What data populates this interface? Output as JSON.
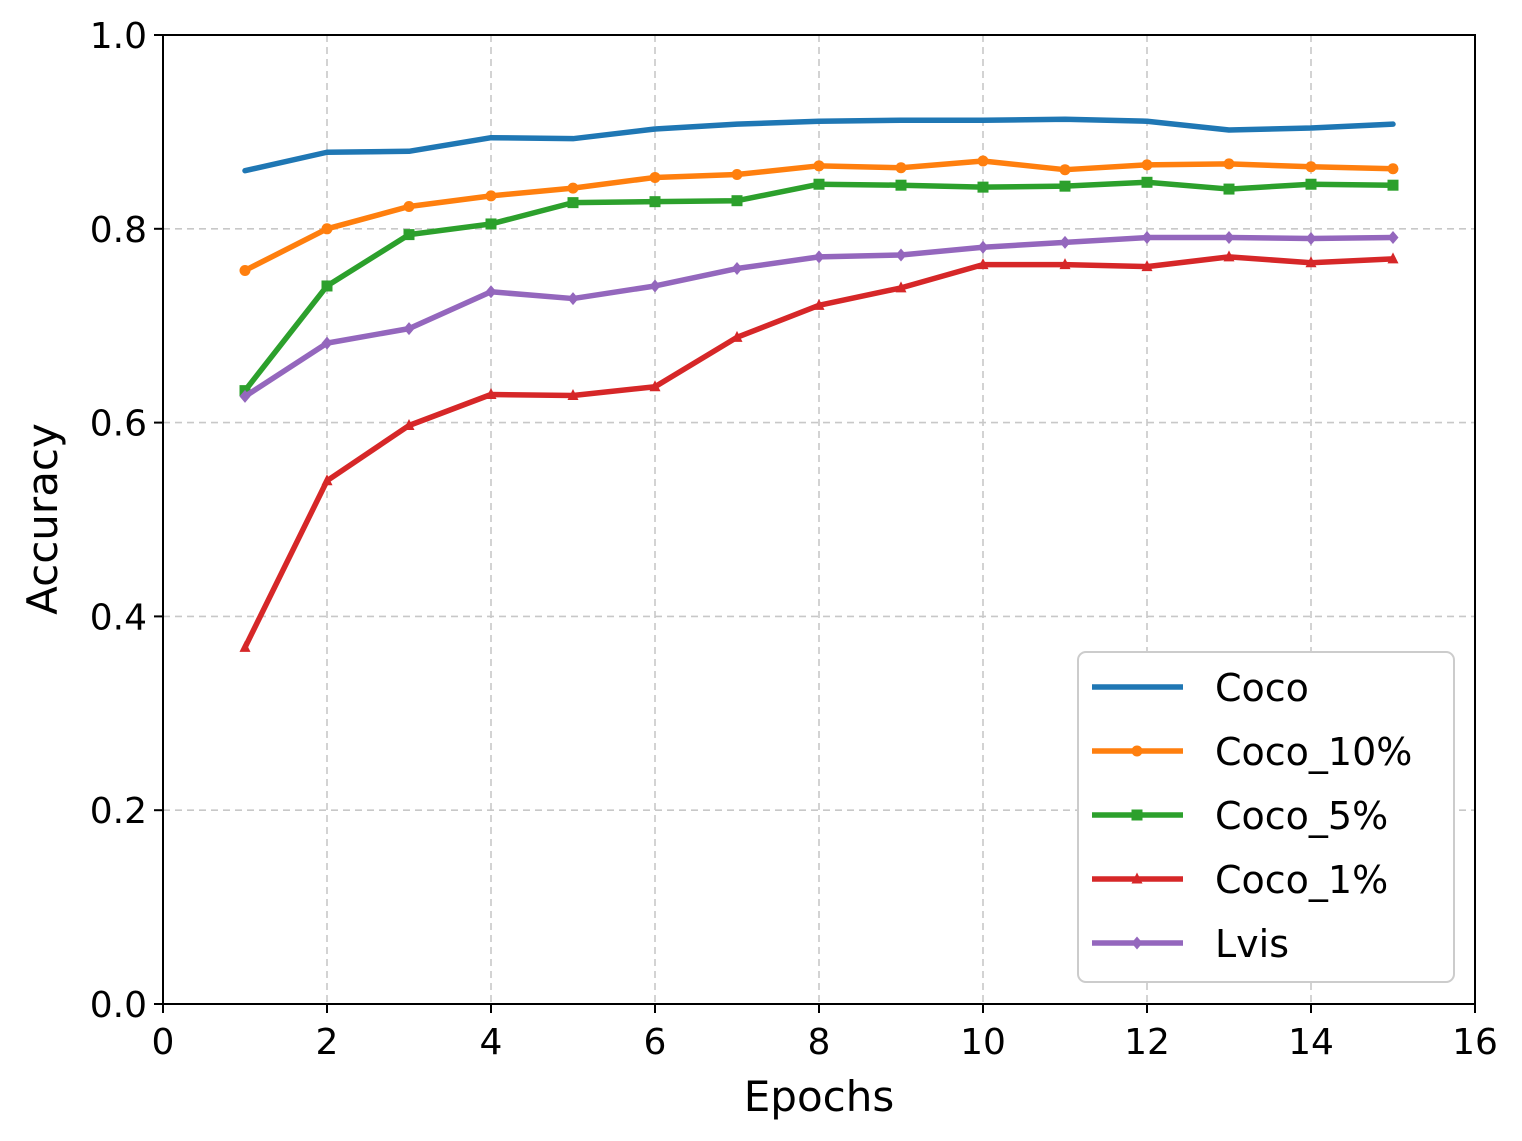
{
  "chart_data": {
    "type": "line",
    "title": "",
    "xlabel": "Epochs",
    "ylabel": "Accuracy",
    "xlim": [
      0,
      16
    ],
    "ylim": [
      0.0,
      1.0
    ],
    "xticks": [
      0,
      2,
      4,
      6,
      8,
      10,
      12,
      14,
      16
    ],
    "xtick_labels": [
      "0",
      "2",
      "4",
      "6",
      "8",
      "10",
      "12",
      "14",
      "16"
    ],
    "yticks": [
      0.0,
      0.2,
      0.4,
      0.6,
      0.8,
      1.0
    ],
    "ytick_labels": [
      "0.0",
      "0.2",
      "0.4",
      "0.6",
      "0.8",
      "1.0"
    ],
    "grid": true,
    "legend_position": "lower-right",
    "x": [
      1,
      2,
      3,
      4,
      5,
      6,
      7,
      8,
      9,
      10,
      11,
      12,
      13,
      14,
      15
    ],
    "series": [
      {
        "name": "Coco",
        "color": "#1f77b4",
        "marker": "none",
        "values": [
          0.86,
          0.879,
          0.88,
          0.894,
          0.893,
          0.903,
          0.908,
          0.911,
          0.912,
          0.912,
          0.913,
          0.911,
          0.902,
          0.904,
          0.908
        ]
      },
      {
        "name": "Coco_10%",
        "color": "#ff7f0e",
        "marker": "circle",
        "values": [
          0.757,
          0.8,
          0.823,
          0.834,
          0.842,
          0.853,
          0.856,
          0.865,
          0.863,
          0.87,
          0.861,
          0.866,
          0.867,
          0.864,
          0.862
        ]
      },
      {
        "name": "Coco_5%",
        "color": "#2ca02c",
        "marker": "square",
        "values": [
          0.633,
          0.741,
          0.794,
          0.805,
          0.827,
          0.828,
          0.829,
          0.846,
          0.845,
          0.843,
          0.844,
          0.848,
          0.841,
          0.846,
          0.845
        ]
      },
      {
        "name": "Coco_1%",
        "color": "#d62728",
        "marker": "triangle",
        "values": [
          0.368,
          0.54,
          0.597,
          0.629,
          0.628,
          0.637,
          0.688,
          0.721,
          0.739,
          0.763,
          0.763,
          0.761,
          0.771,
          0.765,
          0.769
        ]
      },
      {
        "name": "Lvis",
        "color": "#9467bd",
        "marker": "diamond",
        "values": [
          0.627,
          0.682,
          0.697,
          0.735,
          0.728,
          0.741,
          0.759,
          0.771,
          0.773,
          0.781,
          0.786,
          0.791,
          0.791,
          0.79,
          0.791
        ]
      }
    ]
  }
}
